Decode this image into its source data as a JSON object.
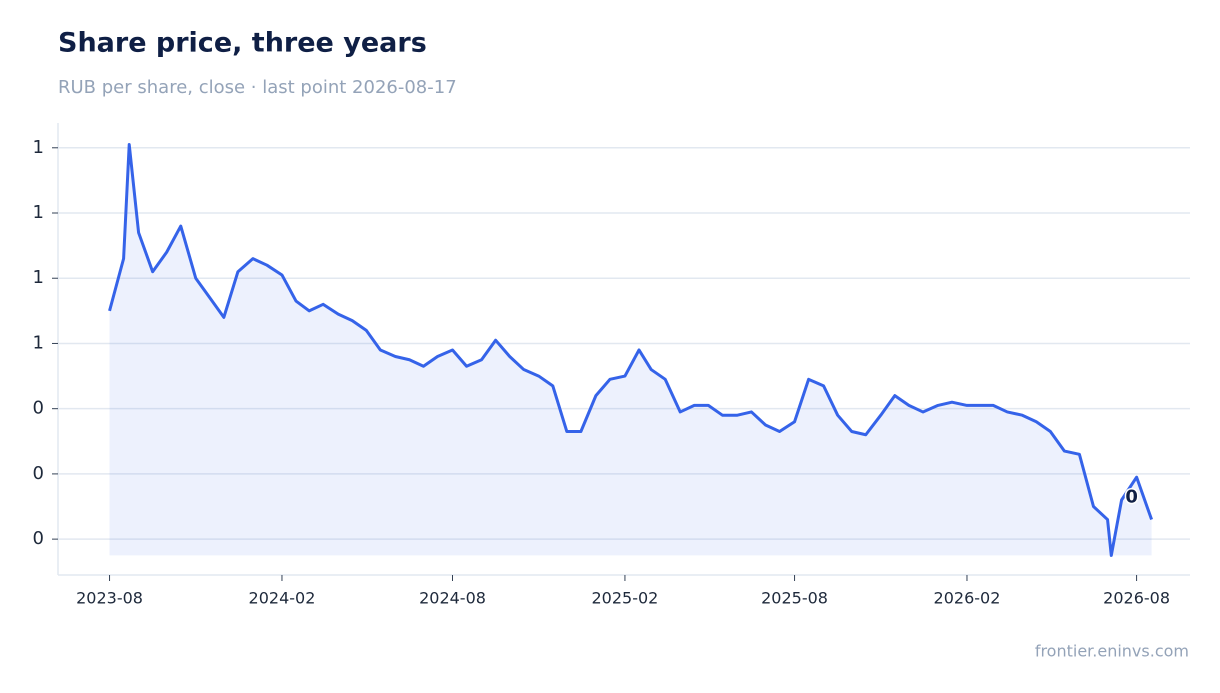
{
  "chart_data": {
    "type": "line",
    "title": "Share price, three years",
    "subtitle": "RUB per share, close · last point 2026-08-17",
    "source": "frontier.eninvs.com",
    "x": [
      "2023-08-01",
      "2023-08-16",
      "2023-08-22",
      "2023-09-01",
      "2023-09-16",
      "2023-10-01",
      "2023-10-16",
      "2023-11-01",
      "2023-11-16",
      "2023-12-01",
      "2023-12-16",
      "2024-01-01",
      "2024-01-16",
      "2024-02-01",
      "2024-02-16",
      "2024-03-01",
      "2024-03-16",
      "2024-04-01",
      "2024-04-16",
      "2024-05-01",
      "2024-05-16",
      "2024-06-01",
      "2024-06-16",
      "2024-07-01",
      "2024-07-16",
      "2024-08-01",
      "2024-08-16",
      "2024-09-01",
      "2024-09-16",
      "2024-10-01",
      "2024-10-16",
      "2024-11-01",
      "2024-11-16",
      "2024-12-01",
      "2024-12-16",
      "2025-01-01",
      "2025-01-16",
      "2025-02-01",
      "2025-02-16",
      "2025-03-01",
      "2025-03-16",
      "2025-04-01",
      "2025-04-16",
      "2025-05-01",
      "2025-05-16",
      "2025-06-01",
      "2025-06-16",
      "2025-07-01",
      "2025-07-16",
      "2025-08-01",
      "2025-08-16",
      "2025-09-01",
      "2025-09-16",
      "2025-10-01",
      "2025-10-16",
      "2025-11-01",
      "2025-11-16",
      "2025-12-01",
      "2025-12-16",
      "2026-01-01",
      "2026-01-16",
      "2026-02-01",
      "2026-02-16",
      "2026-03-01",
      "2026-03-16",
      "2026-04-01",
      "2026-04-16",
      "2026-05-01",
      "2026-05-16",
      "2026-06-01",
      "2026-06-16",
      "2026-07-01",
      "2026-07-05",
      "2026-07-16",
      "2026-08-01",
      "2026-08-17"
    ],
    "series": [
      {
        "name": "Close",
        "color": "#3563e9",
        "values": [
          0.65,
          0.73,
          0.905,
          0.77,
          0.71,
          0.74,
          0.78,
          0.7,
          0.67,
          0.64,
          0.71,
          0.73,
          0.72,
          0.705,
          0.665,
          0.65,
          0.66,
          0.645,
          0.635,
          0.62,
          0.59,
          0.58,
          0.575,
          0.565,
          0.58,
          0.59,
          0.565,
          0.575,
          0.605,
          0.58,
          0.56,
          0.55,
          0.535,
          0.465,
          0.465,
          0.52,
          0.545,
          0.55,
          0.59,
          0.56,
          0.545,
          0.495,
          0.505,
          0.505,
          0.49,
          0.49,
          0.495,
          0.475,
          0.465,
          0.48,
          0.545,
          0.535,
          0.49,
          0.465,
          0.46,
          0.49,
          0.52,
          0.505,
          0.495,
          0.505,
          0.51,
          0.505,
          0.505,
          0.505,
          0.495,
          0.49,
          0.48,
          0.465,
          0.435,
          0.43,
          0.35,
          0.33,
          0.275,
          0.36,
          0.395,
          0.33
        ]
      }
    ],
    "annotation": {
      "text": "0",
      "x": "2026-08-17",
      "y": 0.33
    },
    "xlim": [
      "2023-06-07",
      "2026-09-27"
    ],
    "xticks": [
      "2023-08",
      "2024-02",
      "2024-08",
      "2025-02",
      "2025-08",
      "2026-02",
      "2026-08"
    ],
    "ylim": [
      0.245,
      0.938
    ],
    "yticks": [
      {
        "value": 0.3,
        "label": "0"
      },
      {
        "value": 0.4,
        "label": "0"
      },
      {
        "value": 0.5,
        "label": "0"
      },
      {
        "value": 0.6,
        "label": "1"
      },
      {
        "value": 0.7,
        "label": "1"
      },
      {
        "value": 0.8,
        "label": "1"
      },
      {
        "value": 0.9,
        "label": "1"
      }
    ],
    "grid": true
  }
}
